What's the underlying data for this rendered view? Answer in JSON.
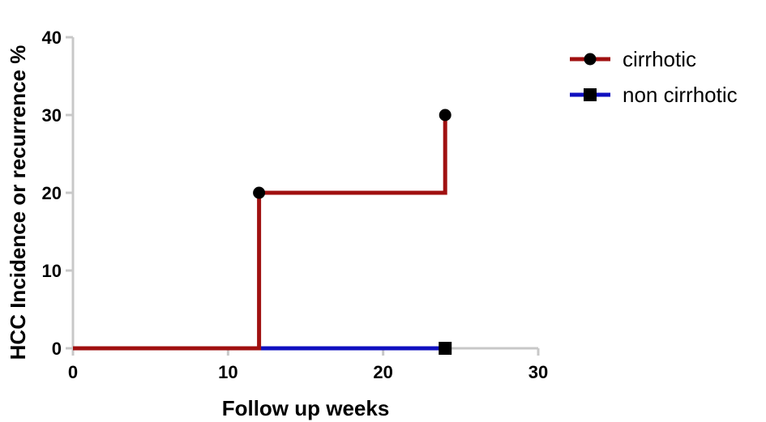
{
  "chart_data": {
    "type": "line",
    "step": true,
    "title": "",
    "xlabel": "Follow up weeks",
    "ylabel": "HCC Incidence or recurrence %",
    "xlim": [
      0,
      30
    ],
    "ylim": [
      0,
      40
    ],
    "xticks": [
      0,
      10,
      20,
      30
    ],
    "yticks": [
      0,
      10,
      20,
      30,
      40
    ],
    "grid": false,
    "legend_position": "top-right",
    "series": [
      {
        "name": "cirrhotic",
        "color": "#a01010",
        "marker": "circle",
        "points": [
          [
            0,
            0
          ],
          [
            12,
            20
          ],
          [
            24,
            30
          ]
        ]
      },
      {
        "name": "non cirrhotic",
        "color": "#1010c0",
        "marker": "square",
        "points": [
          [
            0,
            0
          ],
          [
            24,
            0
          ]
        ]
      }
    ]
  }
}
